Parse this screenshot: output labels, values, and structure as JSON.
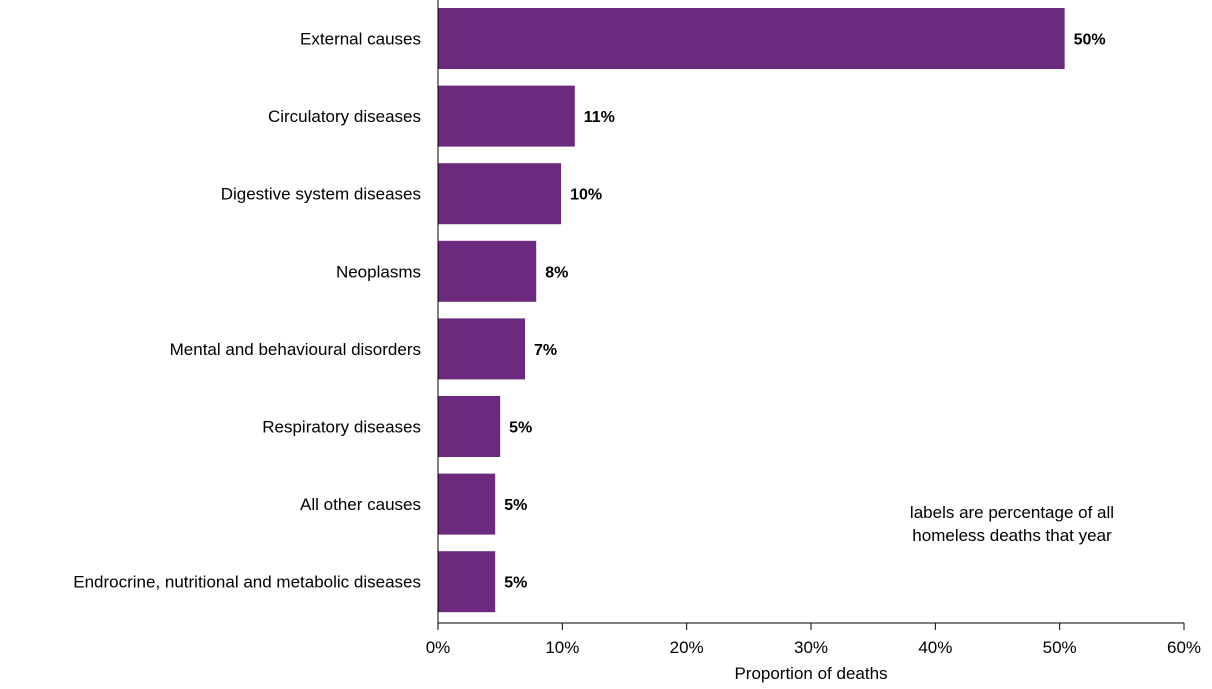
{
  "chart_data": {
    "type": "bar",
    "orientation": "horizontal",
    "categories": [
      "External causes",
      "Circulatory diseases",
      "Digestive system diseases",
      "Neoplasms",
      "Mental and behavioural disorders",
      "Respiratory diseases",
      "All other causes",
      "Endrocrine, nutritional and metabolic diseases"
    ],
    "values": [
      50.4,
      11.0,
      9.9,
      7.9,
      7.0,
      5.0,
      4.6,
      4.6
    ],
    "data_labels": [
      "50%",
      "11%",
      "10%",
      "8%",
      "7%",
      "5%",
      "5%",
      "5%"
    ],
    "xlabel": "Proportion of deaths",
    "ylabel": "",
    "xlim": [
      0,
      60
    ],
    "x_ticks": [
      0,
      10,
      20,
      30,
      40,
      50,
      60
    ],
    "x_tick_labels": [
      "0%",
      "10%",
      "20%",
      "30%",
      "40%",
      "50%",
      "60%"
    ],
    "annotation": [
      "labels are percentage of all",
      "homeless deaths that year"
    ],
    "bar_color": "#6b2a7e",
    "grid": false,
    "legend": "none"
  }
}
